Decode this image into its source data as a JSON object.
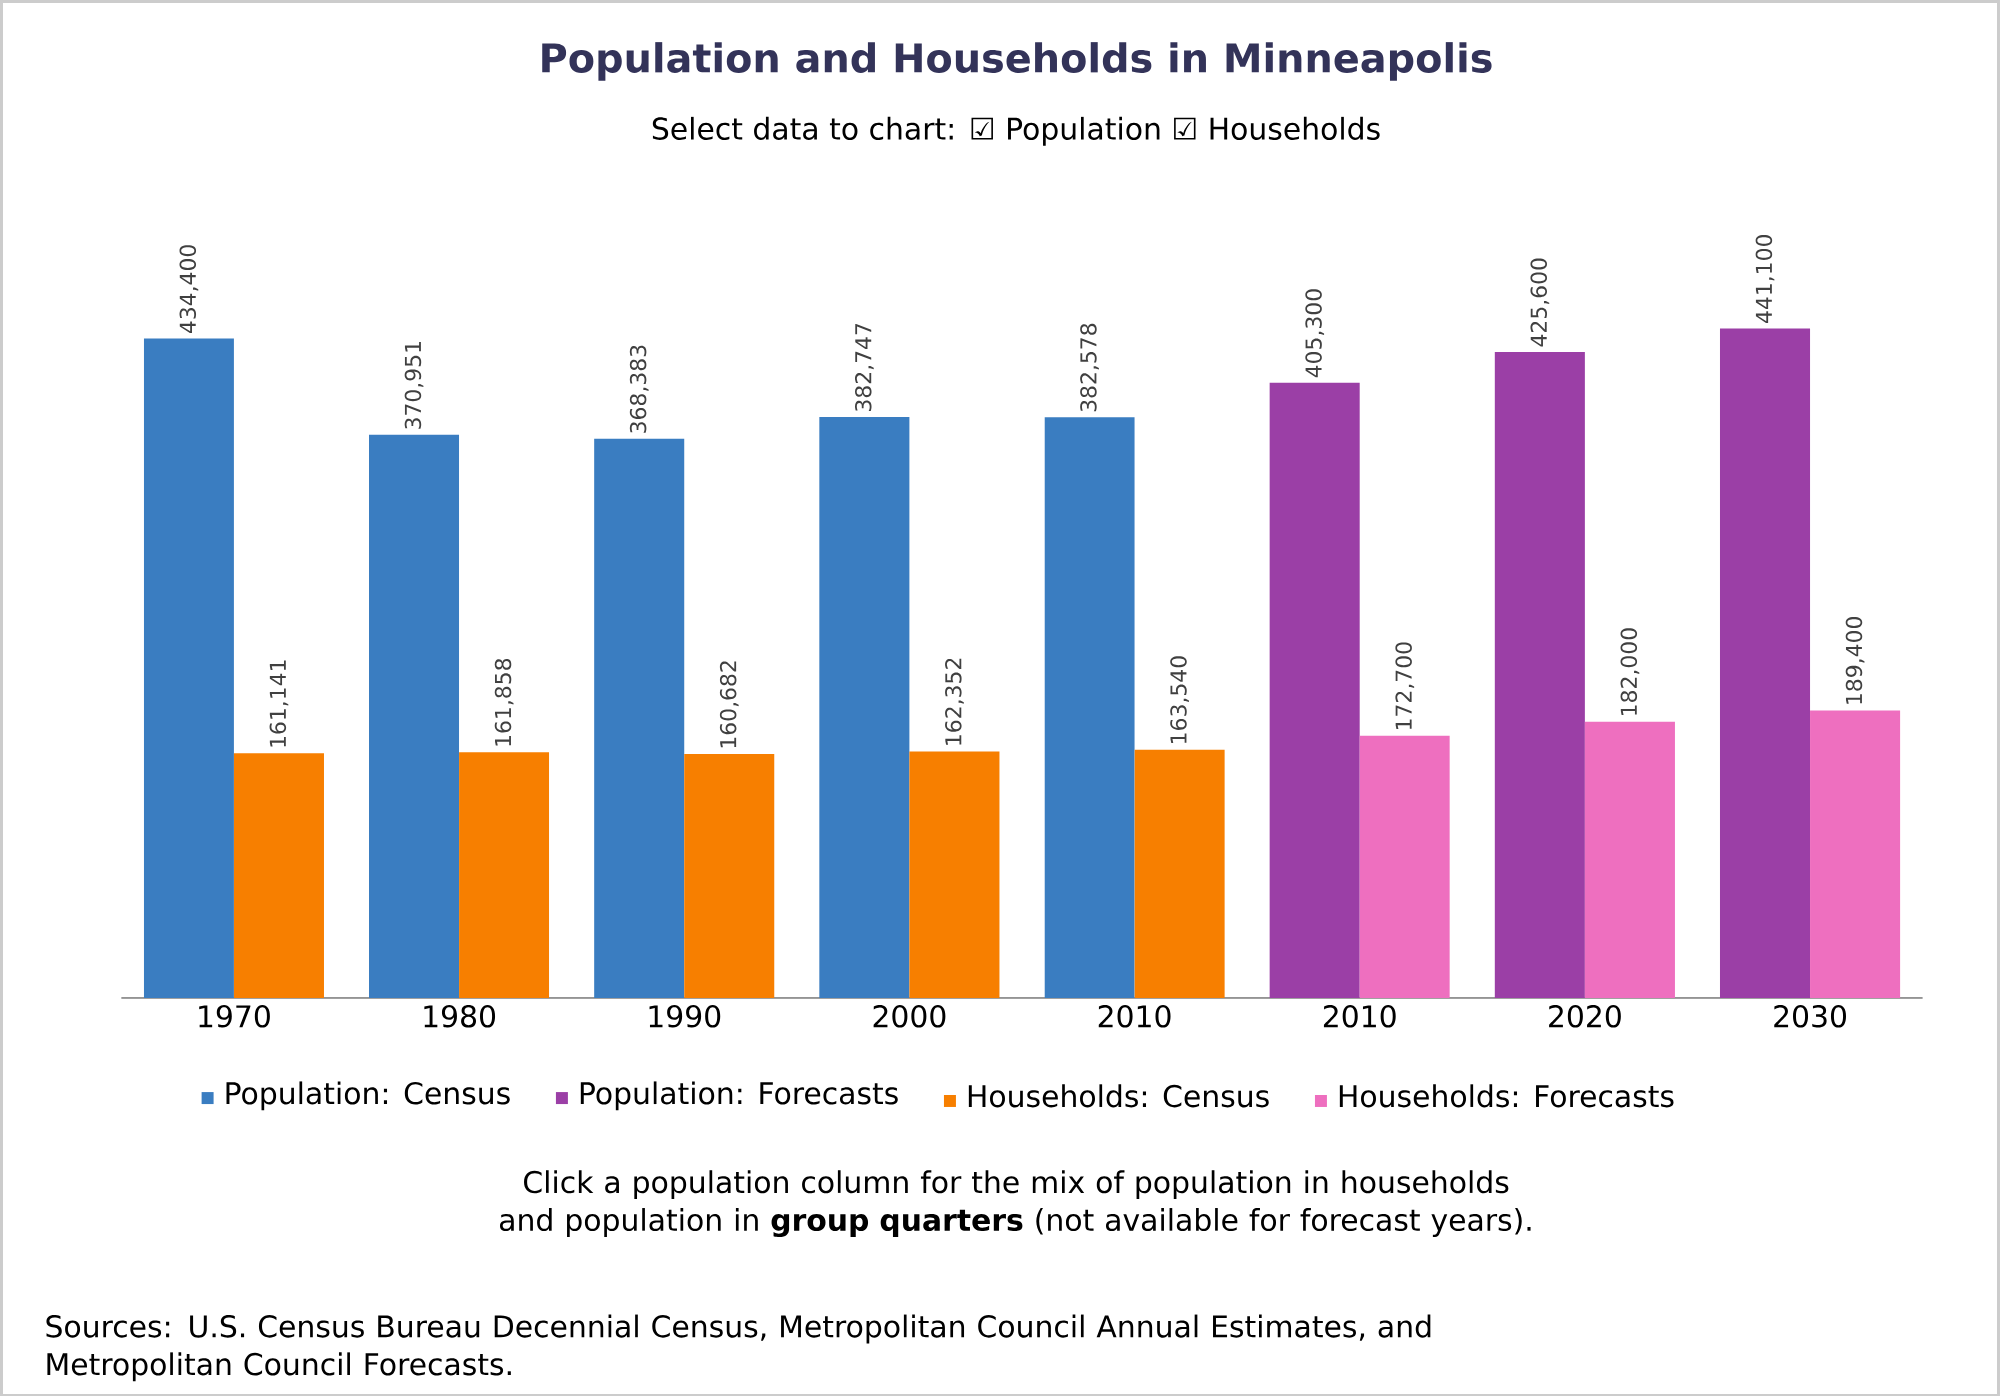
{
  "chart_data": {
    "type": "bar",
    "title": "Population and Households in Minneapolis",
    "subtitle": "Select data to chart: ☑ Population    ☑ Households",
    "categories": [
      "1970",
      "1980",
      "1990",
      "2000",
      "2010",
      "2010",
      "2020",
      "2030"
    ],
    "series": [
      {
        "name": "Population: Census",
        "color": "#3a7dc1",
        "values": [
          434400,
          370951,
          368383,
          382747,
          382578,
          null,
          null,
          null
        ],
        "value_labels": [
          "434,400",
          "370,951",
          "368,383",
          "382,747",
          "382,578",
          null,
          null,
          null
        ]
      },
      {
        "name": "Population: Forecasts",
        "color": "#9b3fa6",
        "values": [
          null,
          null,
          null,
          null,
          null,
          405300,
          425600,
          441100
        ],
        "value_labels": [
          null,
          null,
          null,
          null,
          null,
          "405,300",
          "425,600",
          "441,100"
        ]
      },
      {
        "name": "Households: Census",
        "color": "#f77f00",
        "values": [
          161141,
          161858,
          160682,
          162352,
          163540,
          null,
          null,
          null
        ],
        "value_labels": [
          "161,141",
          "161,858",
          "160,682",
          "162,352",
          "163,540",
          null,
          null,
          null
        ]
      },
      {
        "name": "Households: Forecasts",
        "color": "#ee6fbf",
        "values": [
          null,
          null,
          null,
          null,
          null,
          172700,
          182000,
          189400
        ],
        "value_labels": [
          null,
          null,
          null,
          null,
          null,
          "172,700",
          "182,000",
          "189,400"
        ]
      }
    ],
    "legend": "bottom",
    "annotations": [
      "Click a population column for the mix of population in households and population in **group quarters** (not available for forecast years).",
      "Sources: U.S. Census Bureau Decennial Census, Metropolitan Council Annual Estimates, and Metropolitan Council Forecasts."
    ]
  }
}
